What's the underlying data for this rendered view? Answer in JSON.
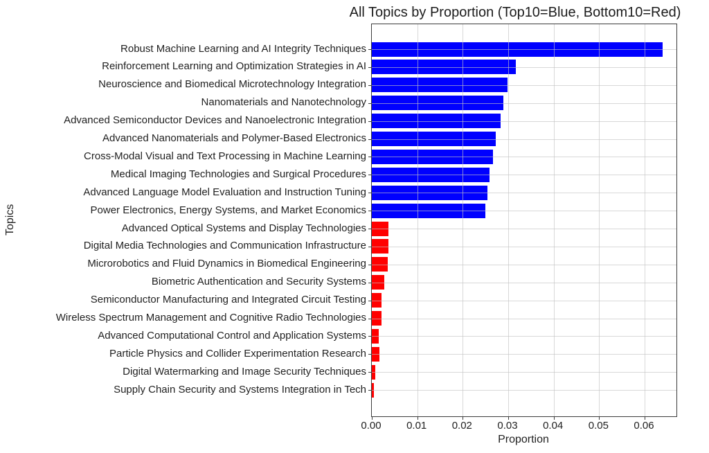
{
  "chart_data": {
    "type": "bar",
    "orientation": "horizontal",
    "title": "All Topics by Proportion (Top10=Blue, Bottom10=Red)",
    "xlabel": "Proportion",
    "ylabel": "Topics",
    "xlim": [
      0,
      0.067
    ],
    "x_ticks": [
      0.0,
      0.01,
      0.02,
      0.03,
      0.04,
      0.05,
      0.06
    ],
    "x_tick_labels": [
      "0.00",
      "0.01",
      "0.02",
      "0.03",
      "0.04",
      "0.05",
      "0.06"
    ],
    "grid": true,
    "categories": [
      "Robust Machine Learning and AI Integrity Techniques",
      "Reinforcement Learning and Optimization Strategies in AI",
      "Neuroscience and Biomedical Microtechnology Integration",
      "Nanomaterials and Nanotechnology",
      "Advanced Semiconductor Devices and Nanoelectronic Integration",
      "Advanced Nanomaterials and Polymer-Based Electronics",
      "Cross-Modal Visual and Text Processing in Machine Learning",
      "Medical Imaging Technologies and Surgical Procedures",
      "Advanced Language Model Evaluation and Instruction Tuning",
      "Power Electronics, Energy Systems, and Market Economics",
      "Advanced Optical Systems and Display Technologies",
      "Digital Media Technologies and Communication Infrastructure",
      "Microrobotics and Fluid Dynamics in Biomedical Engineering",
      "Biometric Authentication and Security Systems",
      "Semiconductor Manufacturing and Integrated Circuit Testing",
      "Wireless Spectrum Management and Cognitive Radio Technologies",
      "Advanced Computational Control and Application Systems",
      "Particle Physics and Collider Experimentation Research",
      "Digital Watermarking and Image Security Techniques",
      "Supply Chain Security and Systems Integration in Tech"
    ],
    "values": [
      0.064,
      0.0317,
      0.0298,
      0.029,
      0.0283,
      0.0272,
      0.0266,
      0.0259,
      0.0254,
      0.0249,
      0.0037,
      0.0036,
      0.0035,
      0.0028,
      0.0022,
      0.0022,
      0.0015,
      0.0016,
      0.0007,
      0.0005
    ],
    "bar_colors": [
      "#0000ff",
      "#0000ff",
      "#0000ff",
      "#0000ff",
      "#0000ff",
      "#0000ff",
      "#0000ff",
      "#0000ff",
      "#0000ff",
      "#0000ff",
      "#ff0000",
      "#ff0000",
      "#ff0000",
      "#ff0000",
      "#ff0000",
      "#ff0000",
      "#ff0000",
      "#ff0000",
      "#ff0000",
      "#ff0000"
    ],
    "legend": {
      "top10_color": "#0000ff",
      "bottom10_color": "#ff0000"
    }
  }
}
